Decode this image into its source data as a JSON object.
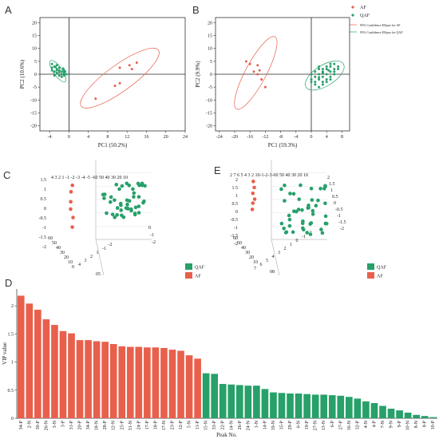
{
  "colors": {
    "af": "#e8604c",
    "qaf": "#27a06a"
  },
  "panels": {
    "A": {
      "label": "A"
    },
    "B": {
      "label": "B"
    },
    "C": {
      "label": "C"
    },
    "D": {
      "label": "D"
    },
    "E": {
      "label": "E"
    }
  },
  "chart_data": [
    {
      "id": "A",
      "type": "scatter",
      "xlabel": "PC1 (50.2%)",
      "ylabel": "PC2 (10.6%)",
      "xlim": [
        -6,
        24
      ],
      "ylim": [
        -22,
        22
      ],
      "xticks": [
        -4,
        0,
        4,
        8,
        12,
        16,
        20,
        24
      ],
      "yticks": [
        -20,
        -15,
        -10,
        -5,
        0,
        5,
        10,
        15,
        20
      ],
      "series": [
        {
          "key": "af",
          "points": [
            [
              5.5,
              -9.5
            ],
            [
              9.5,
              -4.5
            ],
            [
              10.5,
              -3.5
            ],
            [
              10.5,
              2.5
            ],
            [
              12.5,
              3.5
            ],
            [
              13,
              2
            ],
            [
              14,
              4.5
            ]
          ]
        },
        {
          "key": "qaf",
          "points": [
            [
              -3.5,
              4
            ],
            [
              -3,
              3
            ],
            [
              -2.5,
              2
            ],
            [
              -2,
              1.5
            ],
            [
              -3,
              1
            ],
            [
              -2.5,
              0.5
            ],
            [
              -1.5,
              1
            ],
            [
              -1,
              0.5
            ],
            [
              -2,
              -0.5
            ],
            [
              -1.5,
              0
            ],
            [
              -3.5,
              2.5
            ],
            [
              -2.5,
              3.5
            ],
            [
              -1,
              1.5
            ],
            [
              -0.5,
              0
            ],
            [
              -2,
              2.5
            ],
            [
              -3,
              -0.5
            ],
            [
              -1.5,
              -1
            ],
            [
              -2.5,
              1.5
            ],
            [
              -1,
              -0.5
            ],
            [
              -3.5,
              1.5
            ],
            [
              -2,
              0.8
            ],
            [
              -1.2,
              2.2
            ],
            [
              -2.8,
              2.8
            ],
            [
              -0.8,
              1
            ]
          ]
        }
      ],
      "ellipses": [
        {
          "key": "af",
          "center": [
            10.5,
            -1.5
          ],
          "rx": 13.5,
          "ry": 3.7,
          "angle": 36
        },
        {
          "key": "qaf",
          "center": [
            -2.3,
            1.2
          ],
          "rx": 3.6,
          "ry": 1.25,
          "angle": -55
        }
      ]
    },
    {
      "id": "B",
      "type": "scatter",
      "xlabel": "PC1 (59.3%)",
      "ylabel": "PC2 (9.9%)",
      "xlim": [
        -25,
        10
      ],
      "ylim": [
        -22,
        22
      ],
      "xticks": [
        -24,
        -20,
        -16,
        -12,
        -8,
        -4,
        0,
        4,
        8
      ],
      "yticks": [
        -20,
        -15,
        -10,
        -5,
        0,
        5,
        10,
        15,
        20
      ],
      "legend": {
        "position": "top-right",
        "entries": [
          "AF",
          "QAF",
          "95% Confidence Ellipse for AF",
          "95% Confidence Ellipse for QAF"
        ]
      },
      "series": [
        {
          "key": "af",
          "points": [
            [
              -17,
              5
            ],
            [
              -16,
              4
            ],
            [
              -14,
              3.5
            ],
            [
              -15,
              1
            ],
            [
              -14,
              0
            ],
            [
              -13,
              -2
            ],
            [
              -12,
              -5
            ],
            [
              -13.5,
              1.5
            ]
          ]
        },
        {
          "key": "qaf",
          "points": [
            [
              0,
              -2
            ],
            [
              1,
              -1
            ],
            [
              2,
              0
            ],
            [
              3,
              1
            ],
            [
              4,
              2
            ],
            [
              5,
              3
            ],
            [
              6,
              2
            ],
            [
              7,
              3
            ],
            [
              2,
              -2
            ],
            [
              3,
              -1
            ],
            [
              4,
              0
            ],
            [
              5,
              1
            ],
            [
              1,
              1
            ],
            [
              2,
              2
            ],
            [
              3,
              -3
            ],
            [
              4,
              -2
            ],
            [
              5,
              -1
            ],
            [
              6,
              0
            ],
            [
              0,
              0
            ],
            [
              1,
              -3
            ],
            [
              2,
              3
            ],
            [
              3,
              2
            ],
            [
              4,
              3
            ],
            [
              5,
              4
            ],
            [
              6,
              4
            ],
            [
              7,
              2
            ],
            [
              1,
              -4
            ],
            [
              2,
              -5
            ],
            [
              3,
              -4
            ],
            [
              4,
              -3
            ],
            [
              5,
              -2
            ],
            [
              0,
              -3
            ],
            [
              6,
              1
            ],
            [
              3,
              0.5
            ],
            [
              2,
              -1.2
            ],
            [
              4.5,
              1.5
            ]
          ]
        }
      ],
      "ellipses": [
        {
          "key": "af",
          "center": [
            -14.5,
            0.5
          ],
          "rx": 13,
          "ry": 3.3,
          "angle": 62
        },
        {
          "key": "qaf",
          "center": [
            3.5,
            -0.5
          ],
          "rx": 7,
          "ry": 3.3,
          "angle": 32
        }
      ]
    },
    {
      "id": "C",
      "type": "scatter",
      "legend": {
        "position": "bottom-right",
        "entries": [
          "QAF",
          "AF"
        ]
      },
      "tick_labels": {
        "z": [
          "1.5",
          "1",
          "0.5",
          "0",
          "-0.5",
          "-1",
          "-1.5",
          "-2"
        ],
        "top": "4  3  2  1 -1 -2 -3 -4 -5  -60 50 40 30 20 10",
        "right": [
          "0",
          "-1",
          "-2"
        ],
        "bottom": [
          "60",
          "50",
          "40",
          "30",
          "20",
          "10",
          "0"
        ],
        "bottom_diag": [
          "4",
          "3",
          "2",
          "1",
          "-1",
          "-2"
        ],
        "corner": "05"
      }
    },
    {
      "id": "E",
      "type": "scatter",
      "legend": {
        "position": "bottom-right",
        "entries": [
          "QAF",
          "AF"
        ]
      },
      "tick_labels": {
        "z": [
          "2",
          "1.5",
          "1",
          "0.5",
          "0",
          "-0.5",
          "-1",
          "-1.5",
          "-2"
        ],
        "top": "2  7  6  5  4  3  2  10-1-2-3-60 50 40 30 20 10",
        "right": [
          "2",
          "1.5",
          "1",
          "0.5",
          "0",
          "-0.5",
          "-1",
          "-1.5",
          "-2"
        ],
        "bottom": [
          "60",
          "50",
          "40",
          "30",
          "20",
          "10"
        ],
        "bottom_diag": [
          "7",
          "6",
          "5",
          "4",
          "3",
          "2",
          "1",
          "0",
          "-1",
          "-2"
        ],
        "corner": "08"
      }
    },
    {
      "id": "D",
      "type": "bar",
      "xlabel": "Peak No.",
      "ylabel": "VIP value",
      "ylim": [
        0,
        2.3
      ],
      "yticks": [
        0,
        0.5,
        1,
        1.5,
        2
      ],
      "series_names": [
        "QAF",
        "AF"
      ],
      "categories": [
        "34-P",
        "2-N",
        "30-P",
        "26-N",
        "3-N",
        "3-P",
        "31-P",
        "20-P",
        "34-P",
        "18-N",
        "28-P",
        "12-N",
        "25-P",
        "31-N",
        "24-P",
        "17-P",
        "18-P",
        "17-N",
        "23-P",
        "12-P",
        "5-N",
        "11-P",
        "15-N",
        "33-P",
        "22-P",
        "14-N",
        "26-P",
        "24-N",
        "1-N",
        "14-P",
        "19-N",
        "35-P",
        "29-P",
        "6-N",
        "19-P",
        "27-N",
        "13-N",
        "6-P",
        "27-P",
        "16-N",
        "32-P",
        "4-N",
        "4-P",
        "7-N",
        "9-N",
        "9-P",
        "10-N",
        "8-N",
        "8-P",
        "10-P"
      ],
      "values": [
        2.18,
        2.04,
        1.93,
        1.76,
        1.66,
        1.55,
        1.51,
        1.39,
        1.39,
        1.37,
        1.36,
        1.32,
        1.28,
        1.27,
        1.27,
        1.26,
        1.26,
        1.25,
        1.22,
        1.2,
        1.12,
        1.06,
        0.8,
        0.79,
        0.61,
        0.6,
        0.59,
        0.58,
        0.58,
        0.52,
        0.46,
        0.45,
        0.44,
        0.44,
        0.43,
        0.42,
        0.42,
        0.41,
        0.4,
        0.38,
        0.35,
        0.3,
        0.27,
        0.22,
        0.17,
        0.14,
        0.1,
        0.06,
        0.04,
        0.02
      ],
      "groups": [
        "AF",
        "AF",
        "AF",
        "AF",
        "AF",
        "AF",
        "AF",
        "AF",
        "AF",
        "AF",
        "AF",
        "AF",
        "AF",
        "AF",
        "AF",
        "AF",
        "AF",
        "AF",
        "AF",
        "AF",
        "AF",
        "AF",
        "QAF",
        "QAF",
        "QAF",
        "QAF",
        "QAF",
        "QAF",
        "QAF",
        "QAF",
        "QAF",
        "QAF",
        "QAF",
        "QAF",
        "QAF",
        "QAF",
        "QAF",
        "QAF",
        "QAF",
        "QAF",
        "QAF",
        "QAF",
        "QAF",
        "QAF",
        "QAF",
        "QAF",
        "QAF",
        "QAF",
        "QAF",
        "QAF"
      ]
    }
  ]
}
